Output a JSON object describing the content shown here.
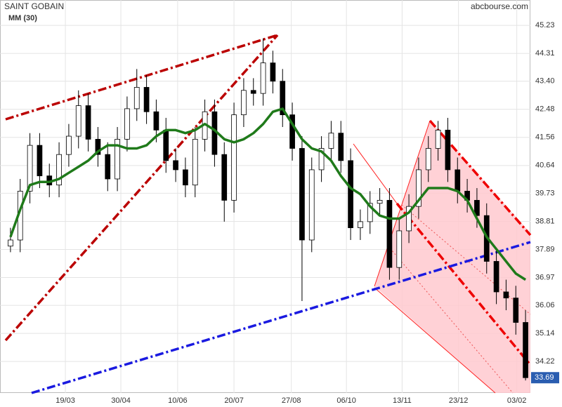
{
  "chart_data": {
    "type": "candlestick",
    "title": "SAINT GOBAIN",
    "source": "abcbourse.com",
    "x": [
      0,
      1,
      2,
      3,
      4,
      5,
      6,
      7,
      8,
      9,
      10,
      11,
      12,
      13,
      14,
      15,
      16,
      17,
      18,
      19,
      20,
      21,
      22,
      23,
      24,
      25,
      26,
      27,
      28,
      29,
      30,
      31,
      32,
      33,
      34,
      35,
      36,
      37,
      38,
      39,
      40,
      41,
      42,
      43,
      44,
      45,
      46,
      47,
      48,
      49,
      50,
      51,
      52,
      53
    ],
    "open": [
      38.0,
      38.2,
      39.8,
      41.3,
      40.3,
      40.0,
      41.0,
      41.6,
      42.6,
      41.5,
      41.0,
      40.2,
      41.5,
      42.5,
      43.2,
      42.4,
      41.8,
      40.8,
      40.5,
      40.0,
      41.5,
      42.4,
      41.0,
      39.5,
      42.3,
      43.1,
      43.0,
      44.0,
      43.4,
      42.3,
      41.2,
      38.2,
      40.5,
      41.2,
      41.7,
      40.8,
      38.6,
      38.8,
      39.4,
      39.5,
      37.3,
      38.5,
      39.3,
      40.5,
      41.2,
      41.8,
      40.5,
      39.8,
      39.5,
      39.0,
      37.5,
      36.5,
      36.3,
      35.5
    ],
    "high": [
      38.6,
      40.2,
      41.7,
      41.7,
      40.7,
      41.4,
      42.0,
      43.1,
      43.0,
      41.9,
      41.4,
      41.9,
      42.9,
      43.8,
      43.6,
      42.8,
      42.2,
      41.2,
      40.9,
      41.9,
      42.8,
      42.8,
      41.4,
      42.7,
      43.5,
      43.5,
      44.8,
      44.4,
      43.8,
      42.7,
      41.6,
      40.9,
      41.6,
      42.1,
      42.1,
      41.2,
      39.2,
      39.8,
      39.9,
      39.9,
      38.9,
      39.7,
      40.9,
      41.6,
      42.1,
      42.2,
      40.9,
      40.2,
      39.9,
      39.4,
      37.9,
      36.9,
      36.7,
      35.9
    ],
    "low": [
      37.8,
      37.8,
      39.4,
      39.9,
      39.6,
      39.6,
      40.6,
      41.2,
      41.1,
      40.6,
      39.8,
      39.8,
      41.1,
      42.1,
      42.0,
      41.4,
      40.4,
      40.1,
      39.6,
      39.6,
      41.1,
      40.6,
      38.8,
      39.1,
      41.9,
      42.6,
      42.6,
      43.0,
      41.9,
      40.8,
      36.2,
      37.8,
      40.1,
      40.8,
      40.4,
      38.2,
      38.2,
      38.4,
      39.0,
      36.9,
      36.9,
      38.1,
      38.9,
      40.1,
      40.8,
      40.1,
      39.4,
      39.1,
      38.6,
      37.1,
      36.1,
      35.9,
      35.1,
      33.6
    ],
    "close": [
      38.2,
      39.8,
      41.3,
      40.3,
      40.0,
      41.0,
      41.6,
      42.6,
      41.5,
      41.0,
      40.2,
      41.5,
      42.5,
      43.2,
      42.4,
      41.8,
      40.8,
      40.5,
      40.0,
      41.5,
      42.4,
      41.0,
      39.5,
      42.3,
      43.1,
      43.0,
      44.0,
      43.4,
      42.3,
      41.2,
      38.2,
      40.5,
      41.2,
      41.7,
      40.8,
      38.6,
      38.8,
      39.4,
      39.5,
      37.3,
      38.5,
      39.3,
      40.5,
      41.2,
      41.8,
      40.5,
      39.8,
      39.5,
      39.0,
      37.5,
      36.5,
      36.3,
      35.5,
      33.69
    ],
    "ma": {
      "name": "MM (30)",
      "color": "#1f7a1a",
      "values": [
        38.3,
        39.2,
        40.0,
        40.1,
        40.1,
        40.2,
        40.4,
        40.6,
        40.8,
        41.1,
        41.3,
        41.3,
        41.2,
        41.2,
        41.3,
        41.6,
        41.8,
        41.8,
        41.7,
        41.8,
        42.0,
        41.8,
        41.5,
        41.4,
        41.5,
        41.7,
        42.0,
        42.4,
        42.5,
        42.0,
        41.5,
        41.2,
        41.1,
        40.8,
        40.3,
        39.9,
        39.7,
        39.3,
        39.0,
        38.9,
        38.9,
        39.1,
        39.5,
        39.9,
        39.9,
        39.9,
        39.8,
        39.5,
        38.9,
        38.3,
        37.9,
        37.5,
        37.1,
        36.9
      ]
    },
    "up_color": "#ffffff",
    "down_color": "#000000",
    "xlim": [
      -0.5,
      53.5
    ],
    "xticks": [
      {
        "value": 5.65,
        "label": "19/03"
      },
      {
        "value": 11.36,
        "label": "30/04"
      },
      {
        "value": 17.2,
        "label": "10/06"
      },
      {
        "value": 23.0,
        "label": "20/07"
      },
      {
        "value": 28.9,
        "label": "27/08"
      },
      {
        "value": 34.57,
        "label": "06/10"
      },
      {
        "value": 40.3,
        "label": "13/11"
      },
      {
        "value": 46.1,
        "label": "23/12"
      },
      {
        "value": 52.1,
        "label": "03/02"
      }
    ],
    "ylim": [
      33.19,
      46.06
    ],
    "yticks": [
      45.23,
      44.31,
      {
        "value": 43.4,
        "label": "43.40"
      },
      42.48,
      41.56,
      40.64,
      39.73,
      38.81,
      37.89,
      36.97,
      36.06,
      35.14,
      34.22
    ],
    "grid": true
  }
}
